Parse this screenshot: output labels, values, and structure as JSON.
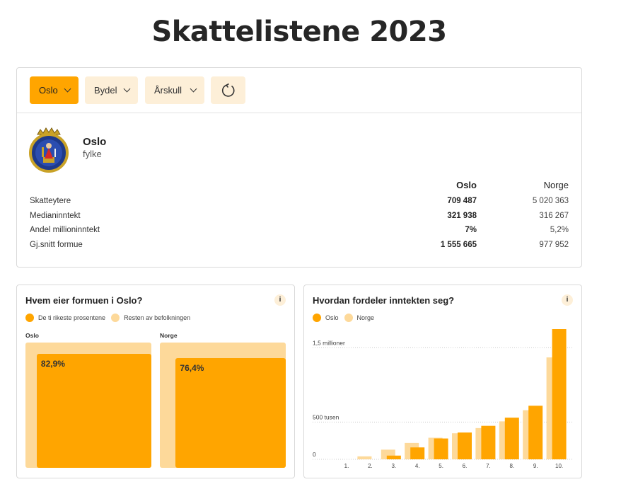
{
  "page_title": "Skattelistene 2023",
  "filters": [
    {
      "label": "Oslo",
      "active": true
    },
    {
      "label": "Bydel",
      "active": false
    },
    {
      "label": "Årskull",
      "active": false
    }
  ],
  "reset_icon": "reset-icon",
  "region": {
    "name": "Oslo",
    "type": "fylke",
    "crest_icon": "oslo-coat-of-arms"
  },
  "stats": {
    "col_oslo": "Oslo",
    "col_norge": "Norge",
    "rows": [
      {
        "label": "Skatteytere",
        "oslo": "709 487",
        "norge": "5 020 363"
      },
      {
        "label": "Medianinntekt",
        "oslo": "321 938",
        "norge": "316 267"
      },
      {
        "label": "Andel millioninntekt",
        "oslo": "7%",
        "norge": "5,2%"
      },
      {
        "label": "Gj.snitt formue",
        "oslo": "1 555 665",
        "norge": "977 952"
      }
    ]
  },
  "wealth_panel": {
    "title": "Hvem eier formuen i Oslo?",
    "info": "i",
    "legend": [
      "De ti rikeste prosentene",
      "Resten av befolkningen"
    ],
    "areas": [
      {
        "label": "Oslo",
        "pct_text": "82,9%",
        "share": 0.829
      },
      {
        "label": "Norge",
        "pct_text": "76,4%",
        "share": 0.764
      }
    ]
  },
  "income_panel": {
    "title": "Hvordan fordeler inntekten seg?",
    "info": "i"
  },
  "colors": {
    "accent": "#ffa500",
    "accent_light": "#fdd99a",
    "button_bg": "#fdefd8"
  },
  "chart_data": {
    "type": "bar",
    "categories": [
      "1.",
      "2.",
      "3.",
      "4.",
      "5.",
      "6.",
      "7.",
      "8.",
      "9.",
      "10."
    ],
    "series": [
      {
        "name": "Oslo",
        "values": [
          0,
          0,
          50000,
          160000,
          280000,
          360000,
          450000,
          560000,
          720000,
          1750000
        ]
      },
      {
        "name": "Norge",
        "values": [
          0,
          40000,
          130000,
          220000,
          290000,
          350000,
          420000,
          510000,
          660000,
          1370000
        ]
      }
    ],
    "tick_labels": [
      "0",
      "500 tusen",
      "1,5 millioner"
    ],
    "tick_values": [
      0,
      500000,
      1500000
    ],
    "ylim": [
      0,
      1750000
    ],
    "legend": "top-left",
    "grid": true
  }
}
